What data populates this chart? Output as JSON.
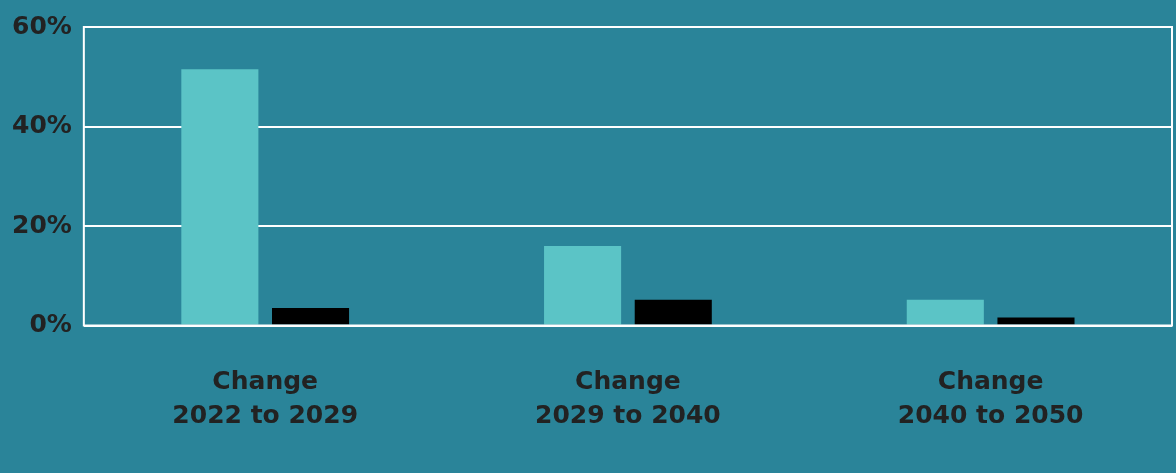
{
  "chart_data": {
    "type": "bar",
    "categories": [
      "Change\n2022 to 2029",
      "Change\n2029 to 2040",
      "Change\n2040 to 2050"
    ],
    "series": [
      {
        "color": "#5bc4c6",
        "values": [
          51.5,
          16,
          5.2
        ]
      },
      {
        "color": "#000000",
        "values": [
          3.5,
          5.2,
          1.6
        ]
      }
    ],
    "ylim": [
      0,
      60
    ],
    "yticks": [
      {
        "value": 0,
        "label": "0%"
      },
      {
        "value": 20,
        "label": "20%"
      },
      {
        "value": 40,
        "label": "40%"
      },
      {
        "value": 60,
        "label": "60%"
      }
    ],
    "grid": "y",
    "legend": false
  }
}
